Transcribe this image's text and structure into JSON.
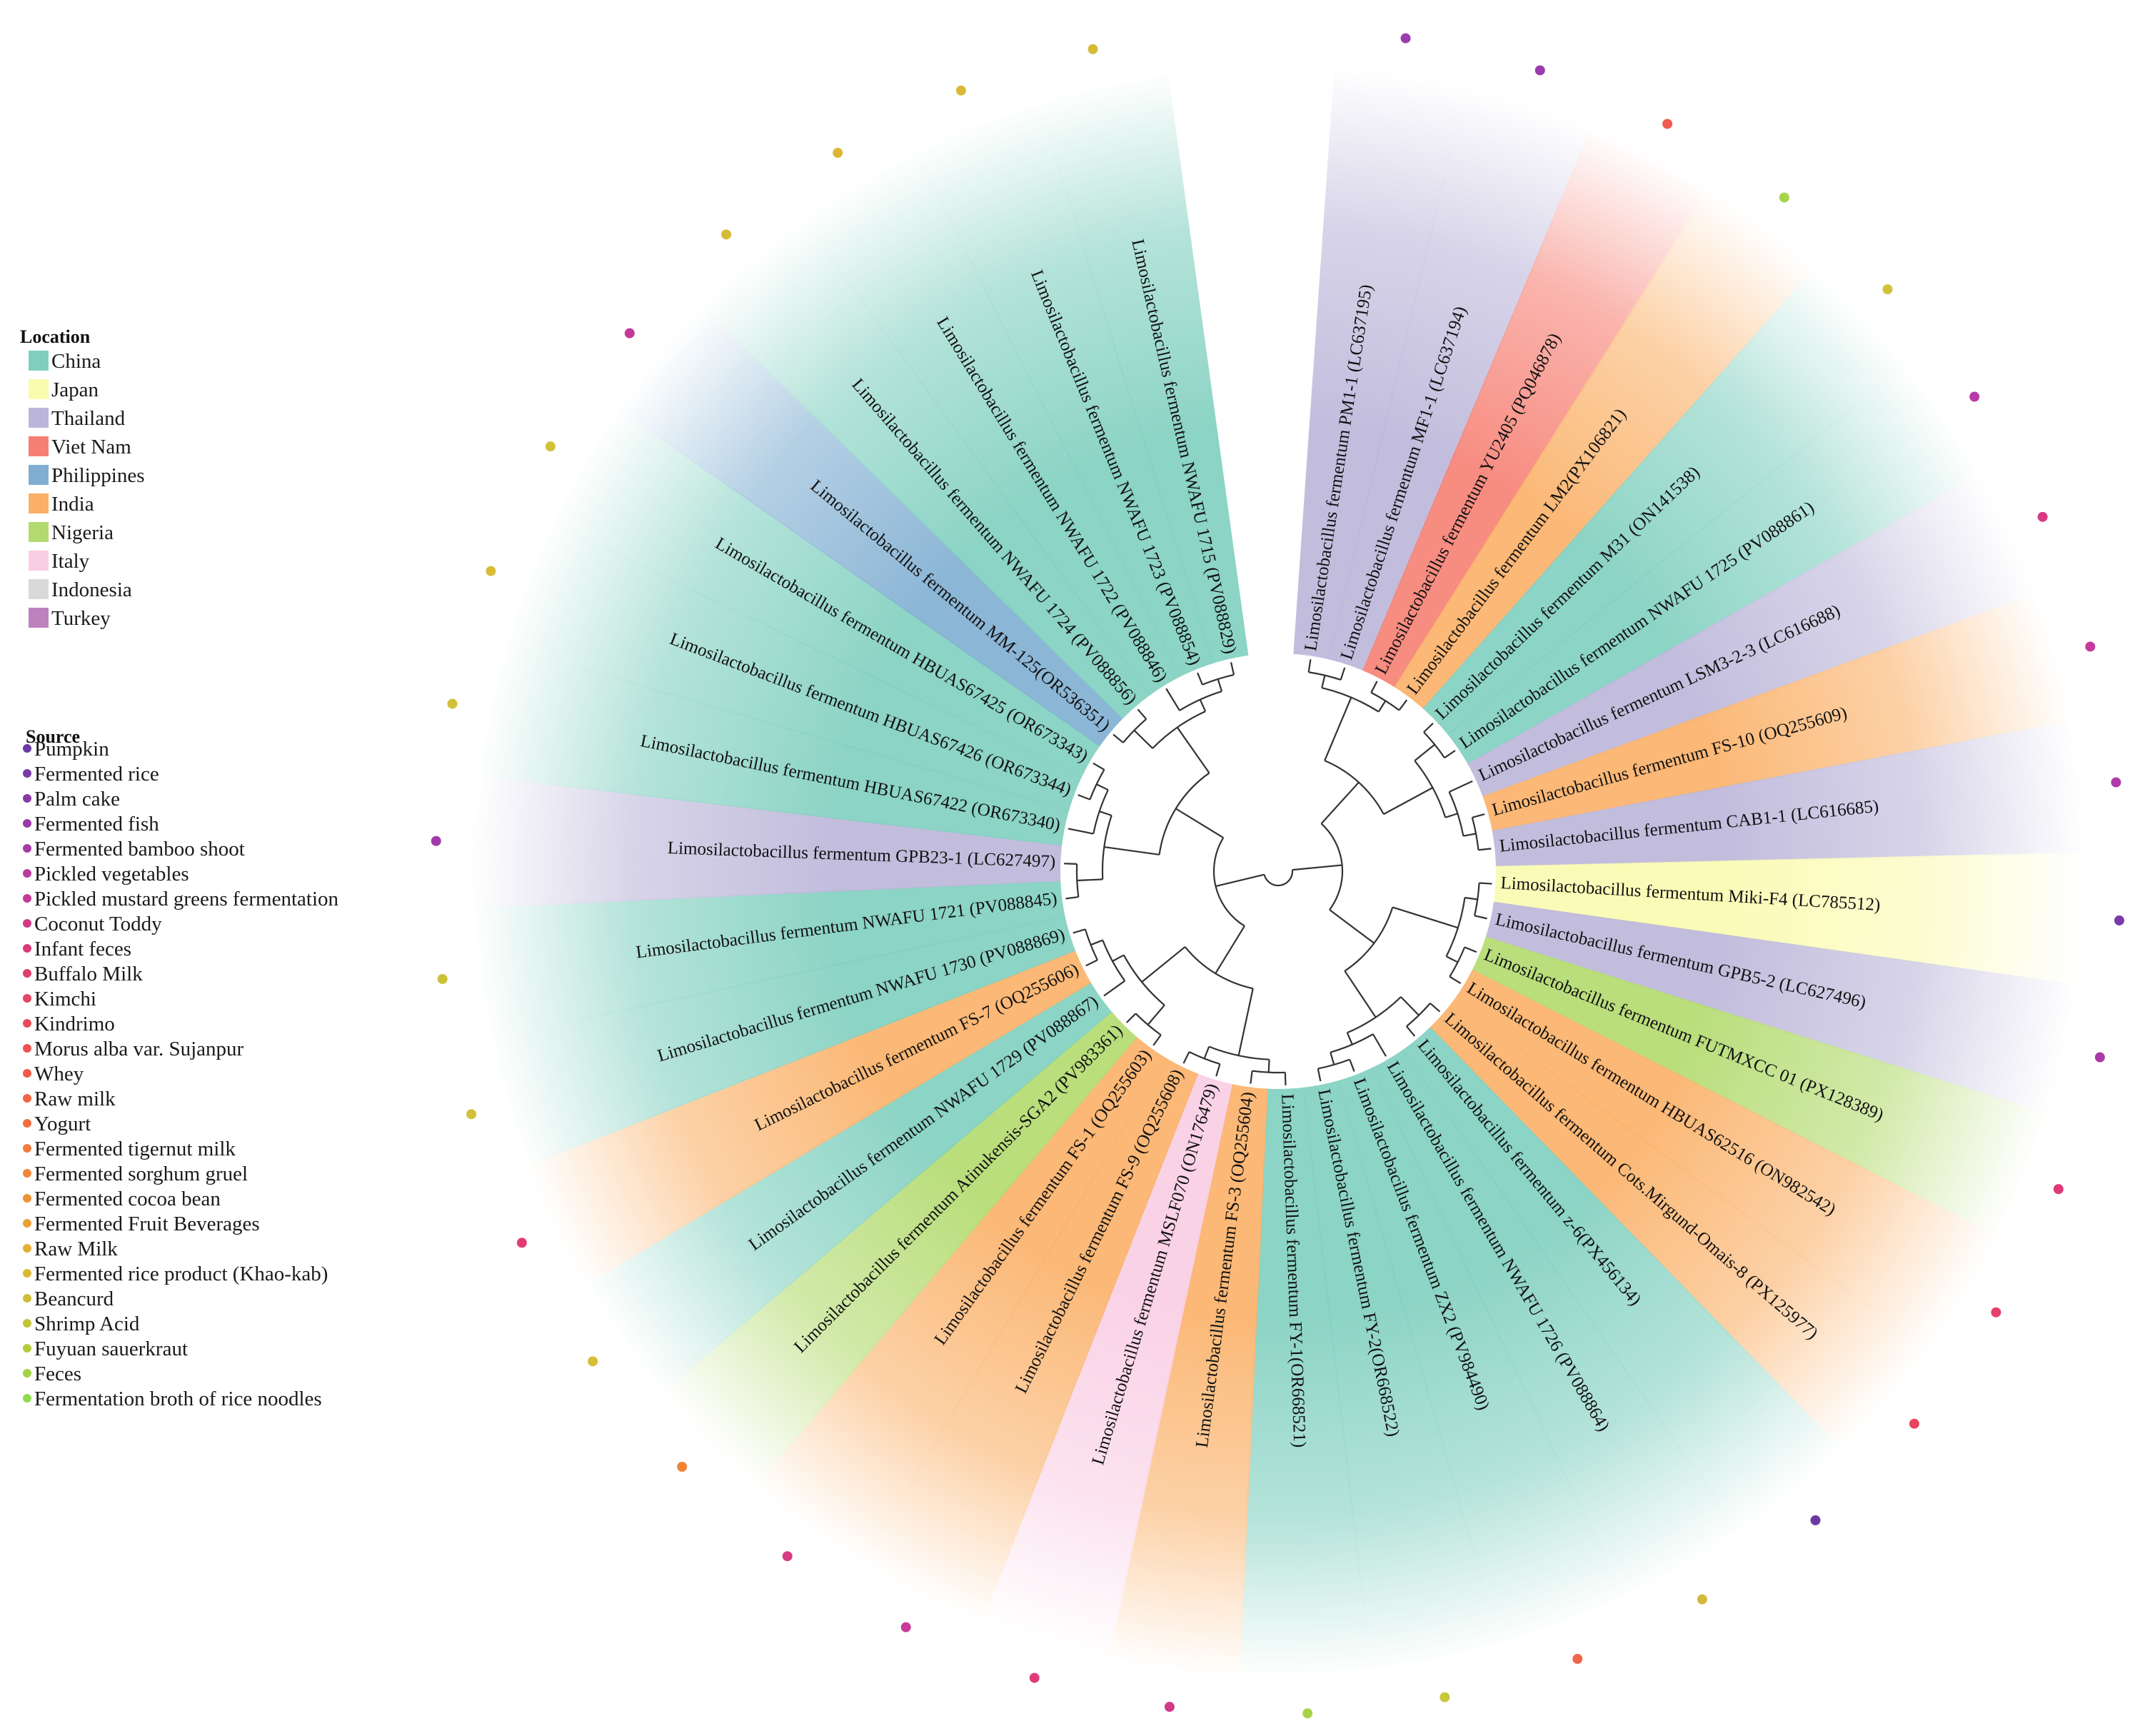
{
  "legend": {
    "location_title": "Location",
    "locations": [
      {
        "name": "China",
        "color": "#7fcfbf"
      },
      {
        "name": "Japan",
        "color": "#fbfbb0"
      },
      {
        "name": "Thailand",
        "color": "#bbb6d9"
      },
      {
        "name": "Viet Nam",
        "color": "#f67f73"
      },
      {
        "name": "Philippines",
        "color": "#7faed2"
      },
      {
        "name": "India",
        "color": "#fbb067"
      },
      {
        "name": "Nigeria",
        "color": "#b2da6e"
      },
      {
        "name": "Italy",
        "color": "#f9cde3"
      },
      {
        "name": "Indonesia",
        "color": "#d9d9d9"
      },
      {
        "name": "Turkey",
        "color": "#bd82be"
      }
    ],
    "source_title": "Source",
    "sources": [
      {
        "name": "Pumpkin",
        "color": "#6a3aa0"
      },
      {
        "name": "Fermented rice",
        "color": "#7a3aa8"
      },
      {
        "name": "Palm cake",
        "color": "#8a3aa8"
      },
      {
        "name": "Fermented fish",
        "color": "#9a3aaa"
      },
      {
        "name": "Fermented bamboo shoot",
        "color": "#a83aa8"
      },
      {
        "name": "Pickled vegetables",
        "color": "#b83a9e"
      },
      {
        "name": "Pickled mustard greens fermentation",
        "color": "#c63a94"
      },
      {
        "name": "Coconut Toddy",
        "color": "#d23a88"
      },
      {
        "name": "Infant feces",
        "color": "#dc3a7c"
      },
      {
        "name": "Buffalo Milk",
        "color": "#e23e70"
      },
      {
        "name": "Kimchi",
        "color": "#e64464"
      },
      {
        "name": "Kindrimo",
        "color": "#ea4a58"
      },
      {
        "name": "Morus alba var. Sujanpur",
        "color": "#ee5250"
      },
      {
        "name": "Whey",
        "color": "#f05a48"
      },
      {
        "name": "Raw milk",
        "color": "#f26444"
      },
      {
        "name": "Yogurt",
        "color": "#f26e40"
      },
      {
        "name": "Fermented tigernut milk",
        "color": "#f27a3c"
      },
      {
        "name": "Fermented sorghum gruel",
        "color": "#f08638"
      },
      {
        "name": "Fermented cocoa bean",
        "color": "#ee9236"
      },
      {
        "name": "Fermented Fruit Beverages",
        "color": "#eaa034"
      },
      {
        "name": "Raw Milk",
        "color": "#e6ae32"
      },
      {
        "name": "Fermented rice product (Khao-kab)",
        "color": "#dcb832"
      },
      {
        "name": "Beancurd",
        "color": "#d0be34"
      },
      {
        "name": "Shrimp Acid",
        "color": "#c4c438"
      },
      {
        "name": "Fuyuan sauerkraut",
        "color": "#b4cc3e"
      },
      {
        "name": "Feces",
        "color": "#a2d444"
      },
      {
        "name": "Fermentation broth of rice noodles",
        "color": "#8edc4c"
      }
    ]
  },
  "tree": {
    "leaves": [
      {
        "label": "Limosilactobacillus fermentum PM1-1  (LC637195)",
        "location": "Thailand",
        "dot": "#9b3db0"
      },
      {
        "label": "Limosilactobacillus fermentum MF1-1 (LC637194)",
        "location": "Thailand",
        "dot": "#9b3db0"
      },
      {
        "label": "Limosilactobacillus fermentum  YU2405 (PQ046878)",
        "location": "Viet Nam",
        "dot": "#f05a50"
      },
      {
        "label": "Limosilactobacillus fermentum LM2(PX106821)",
        "location": "India",
        "dot": "#a6d44a"
      },
      {
        "label": "Limosilactobacillus fermentum  M31 (ON141538)",
        "location": "China",
        "dot": "#d4c03a"
      },
      {
        "label": "Limosilactobacillus fermentum  NWAFU 1725 (PV088861)",
        "location": "China",
        "dot": "#b83aa8"
      },
      {
        "label": "Limosilactobacillus fermentum LSM3-2-3 (LC616688)",
        "location": "Thailand",
        "dot": "#d83a86"
      },
      {
        "label": "Limosilactobacillus fermentum  FS-10 (OQ255609)",
        "location": "India",
        "dot": "#c83a9c"
      },
      {
        "label": "Limosilactobacillus fermentum CAB1-1 (LC616685)",
        "location": "Thailand",
        "dot": "#b03aac"
      },
      {
        "label": "Limosilactobacillus fermentum Miki-F4 (LC785512)",
        "location": "Japan",
        "dot": "#7a3aa8"
      },
      {
        "label": "Limosilactobacillus fermentum GPB5-2 (LC627496)",
        "location": "Thailand",
        "dot": "#aa3aa8"
      },
      {
        "label": "Limosilactobacillus fermentum  FUTMXCC 01 (PX128389)",
        "location": "Nigeria",
        "dot": "#e0387a"
      },
      {
        "label": "Limosilactobacillus fermentum  HBUAS62516 (ON982542)",
        "location": "India",
        "dot": "#e6406e"
      },
      {
        "label": "Limosilactobacillus fermentum  Cots.Mirgund-Omais-8 (PX125977)",
        "location": "India",
        "dot": "#e84460"
      },
      {
        "label": "Limosilactobacillus fermentum z-6(PX456134)",
        "location": "China",
        "dot": "#6a3aa0"
      },
      {
        "label": "Limosilactobacillus fermentum  NWAFU 1726 (PV088864)",
        "location": "China",
        "dot": "#d4b83a"
      },
      {
        "label": "Limosilactobacillus fermentum  ZX2 (PV984490)",
        "location": "China",
        "dot": "#f0664a"
      },
      {
        "label": "Limosilactobacillus fermentum  FY-2(OR668522)",
        "location": "China",
        "dot": "#c8c83c"
      },
      {
        "label": "Limosilactobacillus fermentum  FY-1(OR668521)",
        "location": "China",
        "dot": "#a8d244"
      },
      {
        "label": "Limosilactobacillus fermentum  FS-3 (OQ255604)",
        "location": "India",
        "dot": "#d23a8a"
      },
      {
        "label": "Limosilactobacillus fermentum  MSLF070 (ON176479)",
        "location": "Italy",
        "dot": "#e03a7a"
      },
      {
        "label": "Limosilactobacillus fermentum  FS-9 (OQ255608)",
        "location": "India",
        "dot": "#c83a9a"
      },
      {
        "label": "Limosilactobacillus fermentum  FS-1 (OQ255603)",
        "location": "India",
        "dot": "#d83a84"
      },
      {
        "label": "Limosilactobacillus fermentum  Atinukensis-SGA2 (PV983361)",
        "location": "Nigeria",
        "dot": "#f08238"
      },
      {
        "label": "Limosilactobacillus fermentum  NWAFU 1729 (PV088867)",
        "location": "China",
        "dot": "#d6be36"
      },
      {
        "label": "Limosilactobacillus fermentum  FS-7 (OQ255606)",
        "location": "India",
        "dot": "#e23c74"
      },
      {
        "label": "Limosilactobacillus fermentum  NWAFU 1730 (PV088869)",
        "location": "China",
        "dot": "#d2c03a"
      },
      {
        "label": "Limosilactobacillus fermentum  NWAFU 1721 (PV088845)",
        "location": "China",
        "dot": "#ccc23a"
      },
      {
        "label": "Limosilactobacillus fermentum GPB23-1 (LC627497)",
        "location": "Thailand",
        "dot": "#a23aaa"
      },
      {
        "label": "Limosilactobacillus fermentum  HBUAS67422 (OR673340)",
        "location": "China",
        "dot": "#d0c03a"
      },
      {
        "label": "Limosilactobacillus fermentum  HBUAS67426 (OR673344)",
        "location": "China",
        "dot": "#d8bc36"
      },
      {
        "label": "Limosilactobacillus fermentum  HBUAS67425 (OR673343)",
        "location": "China",
        "dot": "#d2c03a"
      },
      {
        "label": "Limosilactobacillus fermentum  MM-125(OR536351)",
        "location": "Philippines",
        "dot": "#c43a98"
      },
      {
        "label": "Limosilactobacillus fermentum  NWAFU 1724 (PV088856)",
        "location": "China",
        "dot": "#d4bc38"
      },
      {
        "label": "Limosilactobacillus fermentum  NWAFU 1722 (PV088846)",
        "location": "China",
        "dot": "#dab836"
      },
      {
        "label": "Limosilactobacillus fermentum  NWAFU 1723 (PV088854)",
        "location": "China",
        "dot": "#d8ba36"
      },
      {
        "label": "Limosilactobacillus fermentum  NWAFU 1715 (PV088829)",
        "location": "China",
        "dot": "#d6bc38"
      }
    ]
  }
}
